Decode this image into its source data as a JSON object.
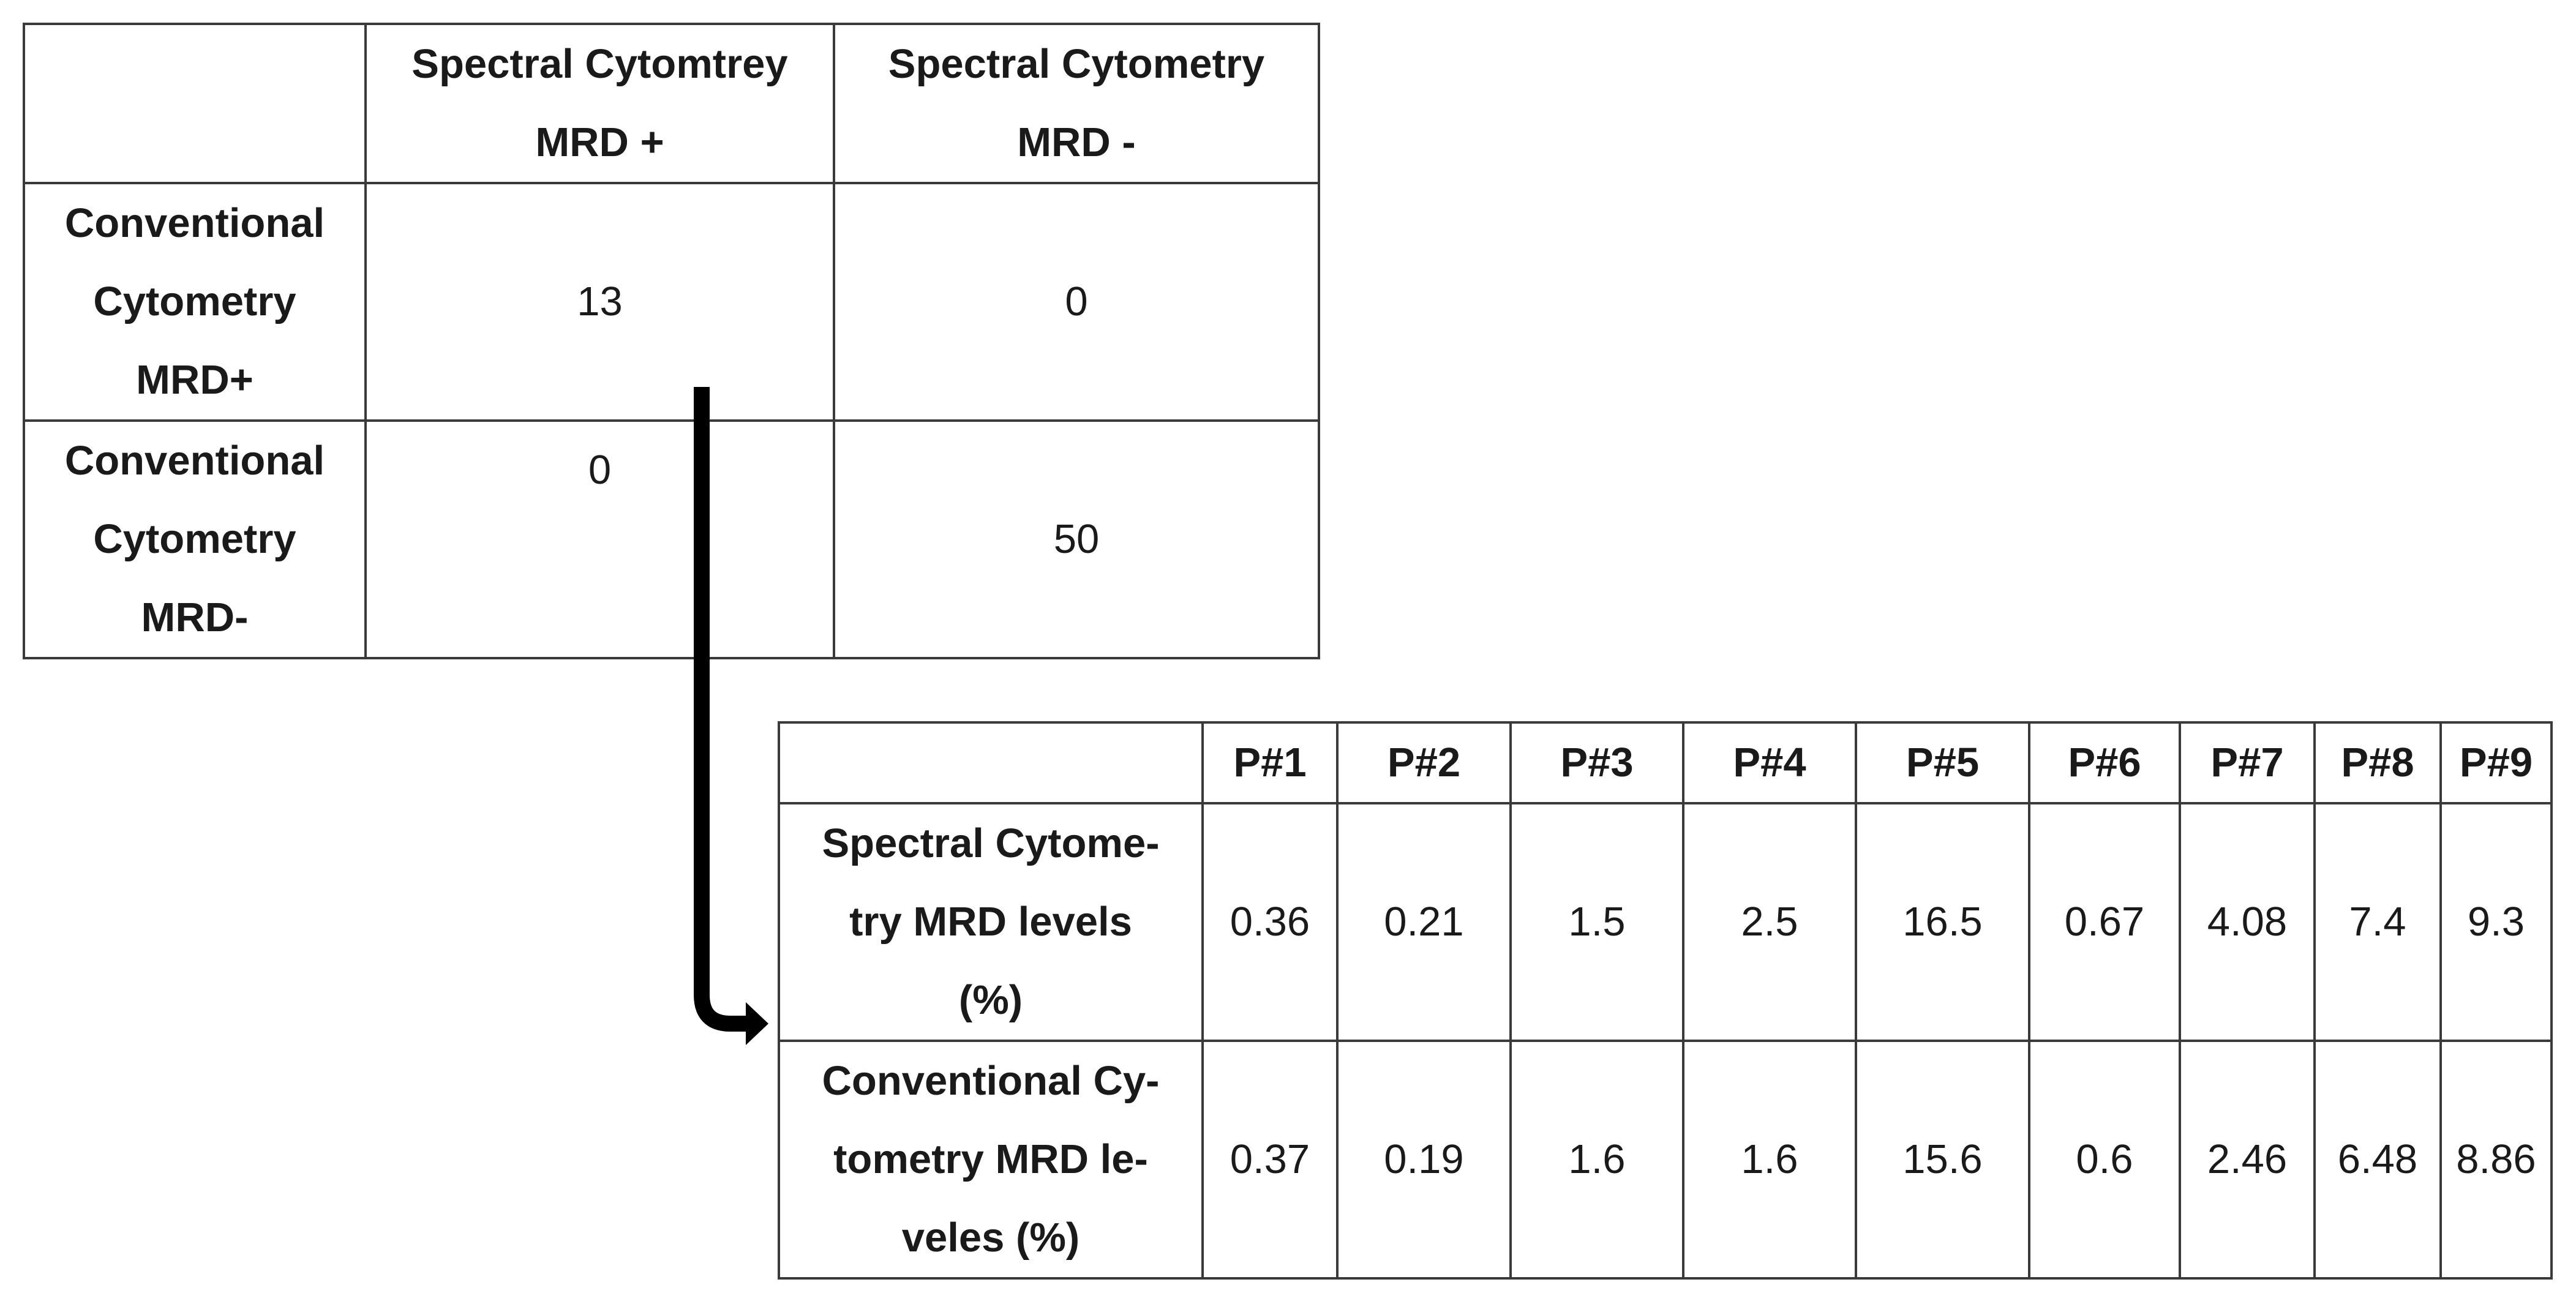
{
  "matrix": {
    "corner": "",
    "col_headers": [
      "Spectral Cytomtrey MRD +",
      "Spectral Cytometry MRD -"
    ],
    "rows": [
      {
        "label": "Conventional Cytometry MRD+",
        "values": [
          "13",
          "0"
        ]
      },
      {
        "label": "Conventional Cytometry MRD-",
        "values": [
          "0",
          "50"
        ]
      }
    ]
  },
  "levels": {
    "corner": "",
    "col_headers": [
      "P#1",
      "P#2",
      "P#3",
      "P#4",
      "P#5",
      "P#6",
      "P#7",
      "P#8",
      "P#9"
    ],
    "rows": [
      {
        "label": "Spectral Cytome-try MRD levels (%)",
        "values": [
          "0.36",
          "0.21",
          "1.5",
          "2.5",
          "16.5",
          "0.67",
          "4.08",
          "7.4",
          "9.3"
        ]
      },
      {
        "label": "Conventional Cy-tometry MRD le-veles (%)",
        "values": [
          "0.37",
          "0.19",
          "1.6",
          "1.6",
          "15.6",
          "0.6",
          "2.46",
          "6.48",
          "8.86"
        ]
      }
    ]
  },
  "colors": {
    "border": "#3a3a3a",
    "arrow": "#000000",
    "text": "#1a1a1a"
  }
}
